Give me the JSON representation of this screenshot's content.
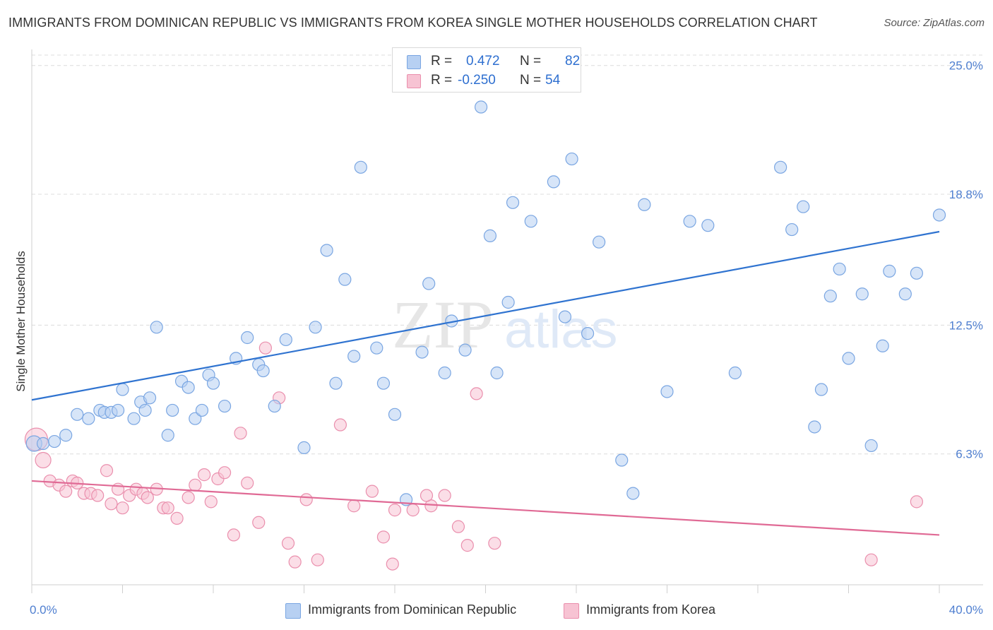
{
  "header": {
    "title": "IMMIGRANTS FROM DOMINICAN REPUBLIC VS IMMIGRANTS FROM KOREA SINGLE MOTHER HOUSEHOLDS CORRELATION CHART",
    "source": "Source: ZipAtlas.com"
  },
  "legend": {
    "r_label": "R =",
    "n_label": "N =",
    "rows": [
      {
        "r_value": "0.472",
        "n_value": "82"
      },
      {
        "r_value": "-0.250",
        "n_value": "54"
      }
    ]
  },
  "colors": {
    "blue_fill": "#b7d0f2",
    "blue_stroke": "#7aa6e2",
    "blue_line": "#2f73d0",
    "pink_fill": "#f7c3d3",
    "pink_stroke": "#ea8fad",
    "pink_line": "#e06a95",
    "grid": "#dcdcdc",
    "tick_text": "#4f7fd0"
  },
  "chart_data": {
    "type": "scatter",
    "title": "IMMIGRANTS FROM DOMINICAN REPUBLIC VS IMMIGRANTS FROM KOREA SINGLE MOTHER HOUSEHOLDS CORRELATION CHART",
    "xlabel": "",
    "ylabel": "Single Mother Households",
    "xlim": [
      0,
      40
    ],
    "ylim": [
      0,
      25.5
    ],
    "x_tick_labels": [
      {
        "value": 0,
        "label": "0.0%"
      },
      {
        "value": 40,
        "label": "40.0%"
      }
    ],
    "y_tick_labels": [
      {
        "value": 6.3,
        "label": "6.3%"
      },
      {
        "value": 12.5,
        "label": "12.5%"
      },
      {
        "value": 18.8,
        "label": "18.8%"
      },
      {
        "value": 25.0,
        "label": "25.0%"
      }
    ],
    "grid": true,
    "legend_position": "top-center",
    "watermark": "ZIPatlas",
    "series": [
      {
        "name": "Immigrants from Dominican Republic",
        "color": "#b7d0f2",
        "trend": {
          "x": [
            0,
            40
          ],
          "y": [
            8.9,
            17.0
          ]
        },
        "points": [
          [
            0.1,
            6.8
          ],
          [
            0.5,
            6.8
          ],
          [
            1.0,
            6.9
          ],
          [
            1.5,
            7.2
          ],
          [
            2.0,
            8.2
          ],
          [
            2.5,
            8.0
          ],
          [
            3.0,
            8.4
          ],
          [
            3.2,
            8.3
          ],
          [
            3.5,
            8.3
          ],
          [
            3.8,
            8.4
          ],
          [
            4.0,
            9.4
          ],
          [
            4.5,
            8.0
          ],
          [
            4.8,
            8.8
          ],
          [
            5.0,
            8.4
          ],
          [
            5.2,
            9.0
          ],
          [
            5.5,
            12.4
          ],
          [
            6.0,
            7.2
          ],
          [
            6.2,
            8.4
          ],
          [
            6.6,
            9.8
          ],
          [
            6.9,
            9.5
          ],
          [
            7.2,
            8.0
          ],
          [
            7.5,
            8.4
          ],
          [
            7.8,
            10.1
          ],
          [
            8.0,
            9.7
          ],
          [
            8.5,
            8.6
          ],
          [
            9.0,
            10.9
          ],
          [
            9.5,
            11.9
          ],
          [
            10.0,
            10.6
          ],
          [
            10.2,
            10.3
          ],
          [
            10.7,
            8.6
          ],
          [
            11.2,
            11.8
          ],
          [
            12.0,
            6.6
          ],
          [
            12.5,
            12.4
          ],
          [
            13.0,
            16.1
          ],
          [
            13.4,
            9.7
          ],
          [
            13.8,
            14.7
          ],
          [
            14.2,
            11.0
          ],
          [
            14.5,
            20.1
          ],
          [
            15.2,
            11.4
          ],
          [
            15.5,
            9.7
          ],
          [
            16.0,
            8.2
          ],
          [
            16.5,
            4.1
          ],
          [
            17.2,
            11.2
          ],
          [
            17.5,
            14.5
          ],
          [
            18.2,
            10.2
          ],
          [
            18.5,
            12.7
          ],
          [
            19.1,
            11.3
          ],
          [
            19.8,
            23.0
          ],
          [
            20.2,
            16.8
          ],
          [
            20.5,
            10.2
          ],
          [
            21.0,
            13.6
          ],
          [
            21.2,
            18.4
          ],
          [
            22.0,
            17.5
          ],
          [
            23.0,
            19.4
          ],
          [
            23.5,
            12.9
          ],
          [
            23.8,
            20.5
          ],
          [
            24.5,
            12.1
          ],
          [
            25.0,
            16.5
          ],
          [
            26.0,
            6.0
          ],
          [
            26.5,
            4.4
          ],
          [
            27.0,
            18.3
          ],
          [
            28.0,
            9.3
          ],
          [
            29.0,
            17.5
          ],
          [
            29.8,
            17.3
          ],
          [
            31.0,
            10.2
          ],
          [
            33.0,
            20.1
          ],
          [
            33.5,
            17.1
          ],
          [
            34.0,
            18.2
          ],
          [
            34.5,
            7.6
          ],
          [
            36.0,
            10.9
          ],
          [
            37.0,
            6.7
          ],
          [
            37.5,
            11.5
          ],
          [
            37.8,
            15.1
          ],
          [
            38.5,
            14.0
          ],
          [
            39.0,
            15.0
          ],
          [
            40.0,
            17.8
          ],
          [
            34.8,
            9.4
          ],
          [
            35.2,
            13.9
          ],
          [
            35.6,
            15.2
          ],
          [
            36.6,
            14.0
          ]
        ]
      },
      {
        "name": "Immigrants from Korea",
        "color": "#f7c3d3",
        "trend": {
          "x": [
            0,
            40
          ],
          "y": [
            5.0,
            2.4
          ]
        },
        "points": [
          [
            0.2,
            7.0
          ],
          [
            0.5,
            6.0
          ],
          [
            0.8,
            5.0
          ],
          [
            1.2,
            4.8
          ],
          [
            1.5,
            4.5
          ],
          [
            1.8,
            5.0
          ],
          [
            2.0,
            4.9
          ],
          [
            2.3,
            4.4
          ],
          [
            2.6,
            4.4
          ],
          [
            2.9,
            4.3
          ],
          [
            3.3,
            5.5
          ],
          [
            3.5,
            3.9
          ],
          [
            3.8,
            4.6
          ],
          [
            4.0,
            3.7
          ],
          [
            4.3,
            4.3
          ],
          [
            4.6,
            4.6
          ],
          [
            4.9,
            4.4
          ],
          [
            5.1,
            4.2
          ],
          [
            5.5,
            4.6
          ],
          [
            5.8,
            3.7
          ],
          [
            6.0,
            3.7
          ],
          [
            6.4,
            3.2
          ],
          [
            6.9,
            4.2
          ],
          [
            7.2,
            4.8
          ],
          [
            7.6,
            5.3
          ],
          [
            7.9,
            4.0
          ],
          [
            8.2,
            5.1
          ],
          [
            8.5,
            5.4
          ],
          [
            8.9,
            2.4
          ],
          [
            9.2,
            7.3
          ],
          [
            9.5,
            4.9
          ],
          [
            10.0,
            3.0
          ],
          [
            10.3,
            11.4
          ],
          [
            10.9,
            9.0
          ],
          [
            11.3,
            2.0
          ],
          [
            11.6,
            1.1
          ],
          [
            12.1,
            4.1
          ],
          [
            12.6,
            1.2
          ],
          [
            13.6,
            7.7
          ],
          [
            14.2,
            3.8
          ],
          [
            15.0,
            4.5
          ],
          [
            15.5,
            2.3
          ],
          [
            15.9,
            1.0
          ],
          [
            16.0,
            3.6
          ],
          [
            17.6,
            3.8
          ],
          [
            18.2,
            4.3
          ],
          [
            18.8,
            2.8
          ],
          [
            19.2,
            1.9
          ],
          [
            19.6,
            9.2
          ],
          [
            20.4,
            2.0
          ],
          [
            16.8,
            3.6
          ],
          [
            37.0,
            1.2
          ],
          [
            39.0,
            4.0
          ],
          [
            17.4,
            4.3
          ]
        ]
      }
    ]
  }
}
